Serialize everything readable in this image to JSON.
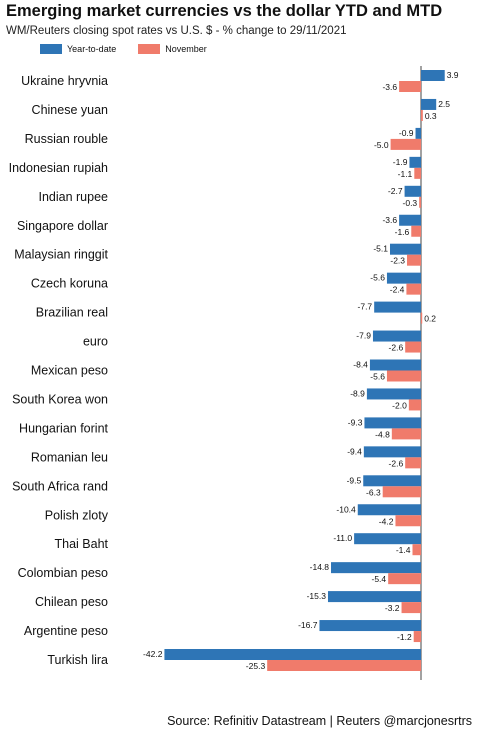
{
  "title": "Emerging market currencies vs the dollar YTD and MTD",
  "subtitle": "WM/Reuters closing spot rates vs U.S. $ - % change to 29/11/2021",
  "source": "Source: Refinitiv Datastream | Reuters @marcjonesrtrs",
  "colors": {
    "ytd": "#2e75b6",
    "november": "#f07b6b"
  },
  "chart_data": {
    "type": "bar",
    "orientation": "horizontal",
    "categories": [
      "Ukraine hryvnia",
      "Chinese yuan",
      "Russian rouble",
      "Indonesian rupiah",
      "Indian rupee",
      "Singapore dollar",
      "Malaysian ringgit",
      "Czech koruna",
      "Brazilian real",
      "euro",
      "Mexican peso",
      "South Korea won",
      "Hungarian forint",
      "Romanian leu",
      "South Africa rand",
      "Polish zloty",
      "Thai Baht",
      "Colombian peso",
      "Chilean peso",
      "Argentine peso",
      "Turkish lira"
    ],
    "series": [
      {
        "name": "Year-to-date",
        "values": [
          3.9,
          2.5,
          -0.9,
          -1.9,
          -2.7,
          -3.6,
          -5.1,
          -5.6,
          -7.7,
          -7.9,
          -8.4,
          -8.9,
          -9.3,
          -9.4,
          -9.5,
          -10.4,
          -11.0,
          -14.8,
          -15.3,
          -16.7,
          -42.2
        ]
      },
      {
        "name": "November",
        "values": [
          -3.6,
          0.3,
          -5.0,
          -1.1,
          -0.3,
          -1.6,
          -2.3,
          -2.4,
          0.2,
          -2.6,
          -5.6,
          -2.0,
          -4.8,
          -2.6,
          -6.3,
          -4.2,
          -1.4,
          -5.4,
          -3.2,
          -1.2,
          -25.3
        ]
      }
    ],
    "xlim": [
      -42.2,
      3.9
    ],
    "grid": false,
    "legend_position": "top-left"
  }
}
